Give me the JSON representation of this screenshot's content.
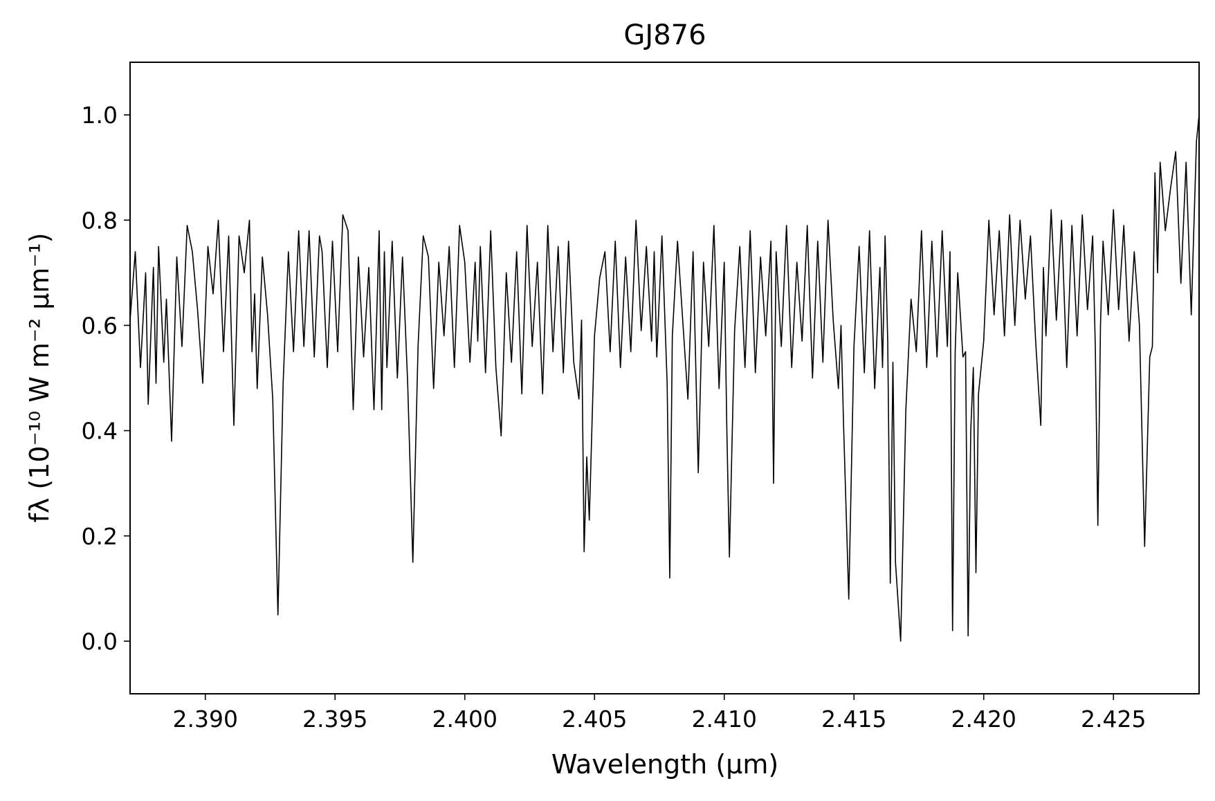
{
  "chart_data": {
    "type": "line",
    "title": "GJ876",
    "xlabel": "Wavelength (μm)",
    "ylabel": "fλ (10⁻¹⁰ W m⁻² μm⁻¹)",
    "xlim": [
      2.3871,
      2.4283
    ],
    "ylim": [
      -0.1,
      1.1
    ],
    "xticks": [
      2.39,
      2.395,
      2.4,
      2.405,
      2.41,
      2.415,
      2.42,
      2.425
    ],
    "xtick_labels": [
      "2.390",
      "2.395",
      "2.400",
      "2.405",
      "2.410",
      "2.415",
      "2.420",
      "2.425"
    ],
    "yticks": [
      0.0,
      0.2,
      0.4,
      0.6,
      0.8,
      1.0
    ],
    "ytick_labels": [
      "0.0",
      "0.2",
      "0.4",
      "0.6",
      "0.8",
      "1.0"
    ],
    "grid": false,
    "line_color": "#000000",
    "series": [
      {
        "x": [
          2.3871,
          2.3873,
          2.3875,
          2.3877,
          2.3878,
          2.388,
          2.3881,
          2.3882,
          2.3884,
          2.3885,
          2.3887,
          2.3889,
          2.3891,
          2.3893,
          2.3895,
          2.3897,
          2.3899,
          2.3901,
          2.3903,
          2.3905,
          2.3907,
          2.3909,
          2.3911,
          2.3913,
          2.3915,
          2.3917,
          2.3918,
          2.3919,
          2.392,
          2.3922,
          2.3924,
          2.3926,
          2.3928,
          2.393,
          2.3932,
          2.3934,
          2.3936,
          2.3938,
          2.394,
          2.3942,
          2.3944,
          2.3945,
          2.3947,
          2.3949,
          2.3951,
          2.3953,
          2.3955,
          2.3957,
          2.3959,
          2.3961,
          2.3963,
          2.3965,
          2.3967,
          2.3968,
          2.3969,
          2.397,
          2.3972,
          2.3974,
          2.3976,
          2.3978,
          2.398,
          2.3982,
          2.3984,
          2.3986,
          2.3988,
          2.399,
          2.3992,
          2.3994,
          2.3996,
          2.3998,
          2.4,
          2.4002,
          2.4004,
          2.4005,
          2.4006,
          2.4008,
          2.401,
          2.4012,
          2.4014,
          2.4016,
          2.4018,
          2.402,
          2.4022,
          2.4024,
          2.4026,
          2.4028,
          2.403,
          2.4032,
          2.4034,
          2.4036,
          2.4038,
          2.404,
          2.4042,
          2.4044,
          2.4045,
          2.4046,
          2.4047,
          2.4048,
          2.405,
          2.4052,
          2.4054,
          2.4056,
          2.4058,
          2.406,
          2.4062,
          2.4064,
          2.4066,
          2.4068,
          2.407,
          2.4072,
          2.4073,
          2.4074,
          2.4076,
          2.4078,
          2.4079,
          2.408,
          2.4082,
          2.4084,
          2.4086,
          2.4088,
          2.409,
          2.4092,
          2.4094,
          2.4096,
          2.4098,
          2.41,
          2.4101,
          2.4102,
          2.4104,
          2.4106,
          2.4108,
          2.411,
          2.4112,
          2.4114,
          2.4116,
          2.4118,
          2.4119,
          2.412,
          2.4122,
          2.4124,
          2.4126,
          2.4128,
          2.413,
          2.4132,
          2.4134,
          2.4136,
          2.4138,
          2.414,
          2.4142,
          2.4144,
          2.4145,
          2.4146,
          2.4148,
          2.415,
          2.4152,
          2.4154,
          2.4156,
          2.4158,
          2.416,
          2.4161,
          2.4162,
          2.4163,
          2.4164,
          2.4165,
          2.4166,
          2.4168,
          2.417,
          2.4172,
          2.4174,
          2.4176,
          2.4178,
          2.418,
          2.4182,
          2.4184,
          2.4186,
          2.4187,
          2.4188,
          2.4189,
          2.419,
          2.4192,
          2.4193,
          2.4194,
          2.4195,
          2.4196,
          2.4197,
          2.4198,
          2.42,
          2.4202,
          2.4204,
          2.4206,
          2.4208,
          2.421,
          2.4212,
          2.4214,
          2.4216,
          2.4218,
          2.422,
          2.4222,
          2.4223,
          2.4224,
          2.4226,
          2.4228,
          2.423,
          2.4232,
          2.4234,
          2.4236,
          2.4238,
          2.424,
          2.4242,
          2.4243,
          2.4244,
          2.4245,
          2.4246,
          2.4248,
          2.425,
          2.4252,
          2.4254,
          2.4256,
          2.4258,
          2.426,
          2.4262,
          2.4264,
          2.4265,
          2.4266,
          2.4267,
          2.4268,
          2.427,
          2.4272,
          2.4274,
          2.4276,
          2.4278,
          2.428,
          2.4282,
          2.4283
        ],
        "y": [
          0.61,
          0.74,
          0.52,
          0.7,
          0.45,
          0.71,
          0.49,
          0.75,
          0.53,
          0.65,
          0.38,
          0.73,
          0.56,
          0.79,
          0.74,
          0.63,
          0.49,
          0.75,
          0.66,
          0.8,
          0.55,
          0.77,
          0.41,
          0.77,
          0.7,
          0.8,
          0.55,
          0.66,
          0.48,
          0.73,
          0.62,
          0.46,
          0.05,
          0.49,
          0.74,
          0.55,
          0.78,
          0.56,
          0.78,
          0.54,
          0.77,
          0.74,
          0.52,
          0.76,
          0.55,
          0.81,
          0.78,
          0.44,
          0.73,
          0.54,
          0.71,
          0.44,
          0.78,
          0.44,
          0.74,
          0.52,
          0.76,
          0.5,
          0.73,
          0.49,
          0.15,
          0.56,
          0.77,
          0.73,
          0.48,
          0.72,
          0.58,
          0.75,
          0.52,
          0.79,
          0.72,
          0.53,
          0.72,
          0.57,
          0.75,
          0.51,
          0.78,
          0.52,
          0.39,
          0.7,
          0.53,
          0.74,
          0.47,
          0.79,
          0.56,
          0.72,
          0.47,
          0.79,
          0.55,
          0.75,
          0.51,
          0.76,
          0.53,
          0.46,
          0.61,
          0.17,
          0.35,
          0.23,
          0.58,
          0.69,
          0.74,
          0.55,
          0.76,
          0.52,
          0.73,
          0.55,
          0.8,
          0.59,
          0.75,
          0.57,
          0.74,
          0.54,
          0.77,
          0.49,
          0.12,
          0.58,
          0.76,
          0.61,
          0.46,
          0.74,
          0.32,
          0.72,
          0.56,
          0.79,
          0.48,
          0.72,
          0.4,
          0.16,
          0.59,
          0.75,
          0.52,
          0.78,
          0.51,
          0.73,
          0.58,
          0.76,
          0.3,
          0.74,
          0.56,
          0.79,
          0.52,
          0.72,
          0.57,
          0.79,
          0.5,
          0.76,
          0.53,
          0.8,
          0.61,
          0.48,
          0.6,
          0.41,
          0.08,
          0.56,
          0.75,
          0.51,
          0.78,
          0.48,
          0.71,
          0.52,
          0.77,
          0.57,
          0.11,
          0.53,
          0.15,
          0.0,
          0.44,
          0.65,
          0.55,
          0.78,
          0.52,
          0.76,
          0.54,
          0.78,
          0.56,
          0.74,
          0.02,
          0.55,
          0.7,
          0.54,
          0.55,
          0.01,
          0.4,
          0.52,
          0.13,
          0.47,
          0.57,
          0.8,
          0.62,
          0.78,
          0.58,
          0.81,
          0.6,
          0.8,
          0.65,
          0.77,
          0.57,
          0.41,
          0.71,
          0.58,
          0.82,
          0.61,
          0.8,
          0.52,
          0.79,
          0.58,
          0.81,
          0.63,
          0.77,
          0.56,
          0.22,
          0.6,
          0.76,
          0.62,
          0.82,
          0.63,
          0.79,
          0.57,
          0.74,
          0.6,
          0.18,
          0.54,
          0.56,
          0.89,
          0.7,
          0.91,
          0.78,
          0.86,
          0.93,
          0.68,
          0.91,
          0.62,
          0.95,
          1.0
        ]
      }
    ]
  }
}
